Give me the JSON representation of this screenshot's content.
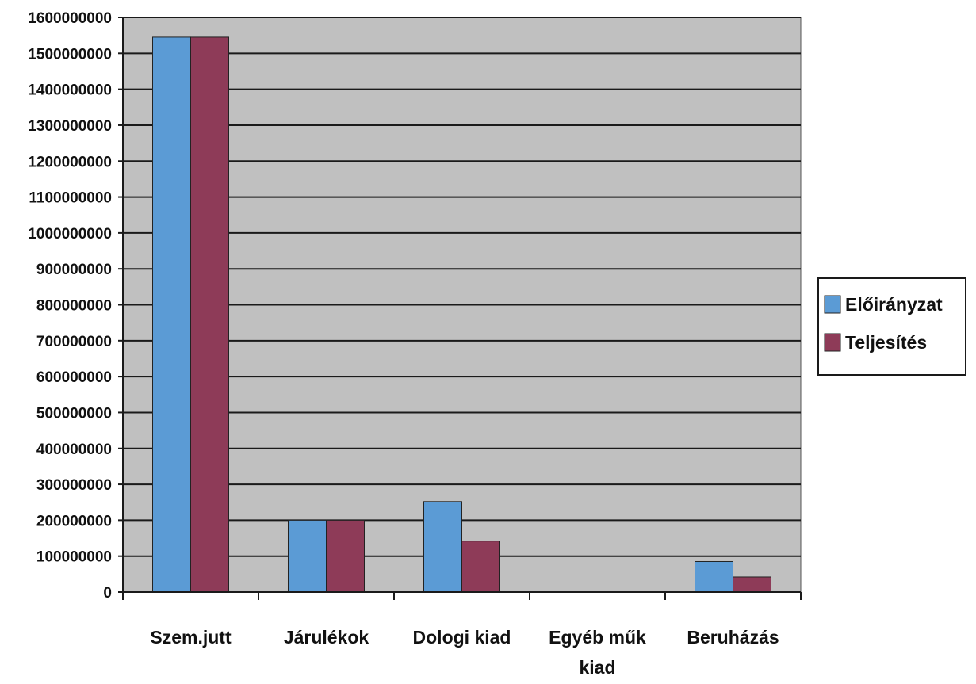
{
  "chart_data": {
    "type": "bar",
    "categories": [
      [
        "Szem.jutt"
      ],
      [
        "Járulékok"
      ],
      [
        "Dologi kiad"
      ],
      [
        "Egyéb műk",
        "kiad"
      ],
      [
        "Beruházás"
      ]
    ],
    "series": [
      {
        "name": "Előirányzat",
        "color": "#5b9bd5",
        "values": [
          1545000000,
          200000000,
          252000000,
          0,
          85000000
        ]
      },
      {
        "name": "Teljesítés",
        "color": "#8e3b58",
        "values": [
          1545000000,
          200000000,
          142000000,
          0,
          42000000
        ]
      }
    ],
    "ylim": [
      0,
      1600000000
    ],
    "ytick_step": 100000000,
    "yticks": [
      "0",
      "100000000",
      "200000000",
      "300000000",
      "400000000",
      "500000000",
      "600000000",
      "700000000",
      "800000000",
      "900000000",
      "1000000000",
      "1100000000",
      "1200000000",
      "1300000000",
      "1400000000",
      "1500000000",
      "1600000000"
    ],
    "grid": true,
    "legend_position": "right",
    "plot_background": "#c0c0c0",
    "title": "",
    "xlabel": "",
    "ylabel": ""
  }
}
